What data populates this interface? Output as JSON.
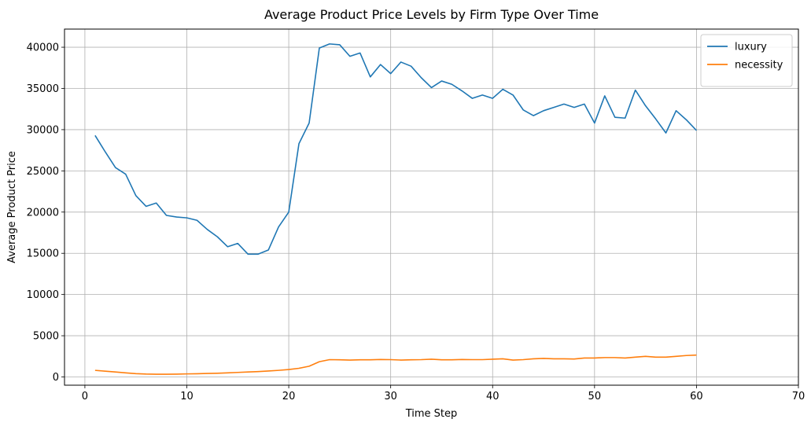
{
  "chart_data": {
    "type": "line",
    "title": "Average Product Price Levels by Firm Type Over Time",
    "xlabel": "Time Step",
    "ylabel": "Average Product Price",
    "xlim": [
      -2,
      70
    ],
    "ylim": [
      -1000,
      42200
    ],
    "xticks": [
      0,
      10,
      20,
      30,
      40,
      50,
      60,
      70
    ],
    "yticks": [
      0,
      5000,
      10000,
      15000,
      20000,
      25000,
      30000,
      35000,
      40000
    ],
    "grid": true,
    "legend_position": "top-right",
    "x": [
      1,
      2,
      3,
      4,
      5,
      6,
      7,
      8,
      9,
      10,
      11,
      12,
      13,
      14,
      15,
      16,
      17,
      18,
      19,
      20,
      21,
      22,
      23,
      24,
      25,
      26,
      27,
      28,
      29,
      30,
      31,
      32,
      33,
      34,
      35,
      36,
      37,
      38,
      39,
      40,
      41,
      42,
      43,
      44,
      45,
      46,
      47,
      48,
      49,
      50,
      51,
      52,
      53,
      54,
      55,
      56,
      57,
      58,
      59,
      60
    ],
    "series": [
      {
        "name": "luxury",
        "color": "#1f77b4",
        "values": [
          29300,
          27300,
          25400,
          24600,
          22000,
          20700,
          21100,
          19600,
          19400,
          19300,
          19000,
          17900,
          17000,
          15800,
          16200,
          14900,
          14900,
          15400,
          18200,
          20000,
          28300,
          30800,
          39900,
          40400,
          40300,
          38900,
          39300,
          36400,
          37900,
          36800,
          38200,
          37700,
          36300,
          35100,
          35900,
          35500,
          34700,
          33800,
          34200,
          33800,
          34900,
          34200,
          32400,
          31700,
          32300,
          32700,
          33100,
          32700,
          33100,
          30800,
          34100,
          31500,
          31400,
          34800,
          32900,
          31300,
          29600,
          32300,
          31200,
          29900
        ]
      },
      {
        "name": "necessity",
        "color": "#ff7f0e",
        "values": [
          800,
          700,
          600,
          500,
          400,
          350,
          330,
          330,
          340,
          370,
          390,
          420,
          450,
          500,
          550,
          600,
          650,
          720,
          800,
          900,
          1050,
          1300,
          1850,
          2100,
          2080,
          2050,
          2080,
          2080,
          2120,
          2100,
          2050,
          2080,
          2100,
          2150,
          2080,
          2080,
          2120,
          2100,
          2100,
          2150,
          2200,
          2050,
          2100,
          2200,
          2250,
          2200,
          2200,
          2180,
          2300,
          2300,
          2350,
          2350,
          2300,
          2400,
          2500,
          2400,
          2400,
          2500,
          2600,
          2650
        ]
      }
    ]
  }
}
